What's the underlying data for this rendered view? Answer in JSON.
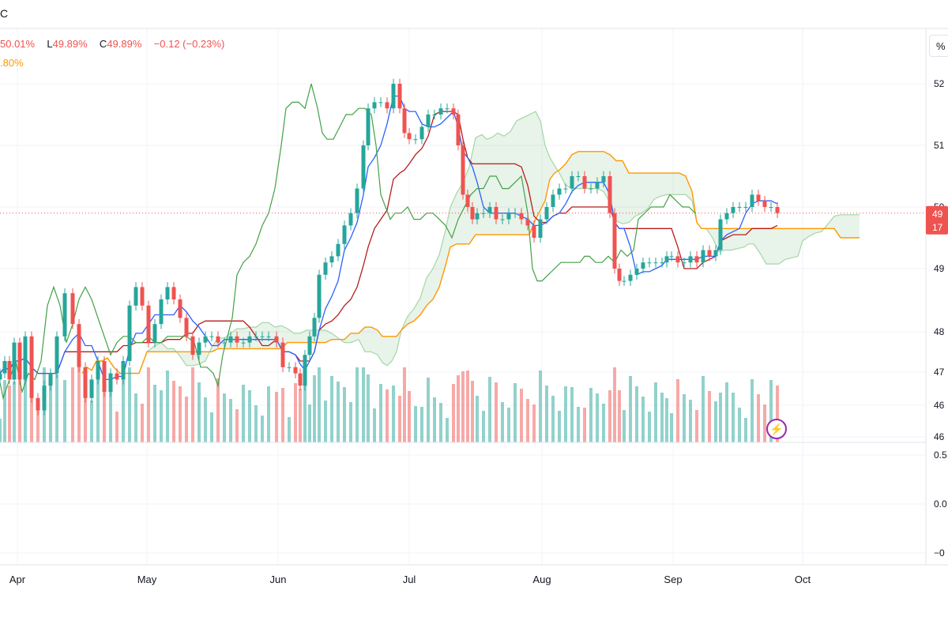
{
  "header": {
    "symbol_fragment": "C",
    "ohlc_parts": [
      {
        "label": "",
        "value": "50.01%"
      },
      {
        "label": "L",
        "value": "49.89%"
      },
      {
        "label": "C",
        "value": "49.89%"
      },
      {
        "label": "",
        "value": "−0.12 (−0.23%)"
      }
    ],
    "ichimoku_value": ".80%",
    "percent_button": "%"
  },
  "colors": {
    "up": "#26a69a",
    "down": "#ef5350",
    "tenkan": "#2962ff",
    "kijun": "#b71c1c",
    "chikou": "#43a047",
    "span_a": "#a5d6a7",
    "span_b": "#ff9800",
    "cloud_bull": "rgba(67,160,71,0.12)",
    "cloud_bear": "rgba(244,67,54,0.12)",
    "vol_up": "rgba(38,166,154,0.5)",
    "vol_down": "rgba(239,83,80,0.5)",
    "grid": "#f0f3fa",
    "axis_text": "#131722"
  },
  "chart_data": {
    "type": "candlestick",
    "x_axis_labels": [
      "Apr",
      "May",
      "Jun",
      "Jul",
      "Aug",
      "Sep",
      "Oct"
    ],
    "y_axis_labels": [
      "52",
      "51",
      "50",
      "49",
      "48",
      "47",
      "46",
      "46"
    ],
    "y_unit": "%",
    "y_range_approx": [
      45.5,
      52.1
    ],
    "last_price_label": "49",
    "countdown_label": "17",
    "oscillator_axis_labels": [
      "0.5",
      "0.0",
      "−0"
    ],
    "price_points": [
      [
        0,
        47.3
      ],
      [
        6,
        47.5
      ],
      [
        12,
        47.2
      ],
      [
        18,
        47.8
      ],
      [
        25,
        47.2
      ],
      [
        32,
        47.9
      ],
      [
        40,
        46.9
      ],
      [
        48,
        46.7
      ],
      [
        56,
        47.1
      ],
      [
        64,
        47.3
      ],
      [
        72,
        47.9
      ],
      [
        82,
        48.6
      ],
      [
        92,
        48.1
      ],
      [
        100,
        47.4
      ],
      [
        108,
        46.9
      ],
      [
        116,
        47.2
      ],
      [
        124,
        47.5
      ],
      [
        132,
        47.0
      ],
      [
        140,
        47.3
      ],
      [
        148,
        47.2
      ],
      [
        156,
        47.5
      ],
      [
        164,
        48.4
      ],
      [
        172,
        48.7
      ],
      [
        180,
        48.4
      ],
      [
        188,
        47.8
      ],
      [
        196,
        48.1
      ],
      [
        204,
        48.5
      ],
      [
        212,
        48.7
      ],
      [
        220,
        48.5
      ],
      [
        228,
        48.2
      ],
      [
        236,
        47.9
      ],
      [
        244,
        47.6
      ],
      [
        252,
        47.8
      ],
      [
        260,
        47.9
      ],
      [
        268,
        47.9
      ],
      [
        276,
        47.8
      ],
      [
        284,
        47.8
      ],
      [
        292,
        47.9
      ],
      [
        300,
        47.8
      ],
      [
        308,
        47.8
      ],
      [
        316,
        47.9
      ],
      [
        324,
        47.9
      ],
      [
        332,
        47.9
      ],
      [
        340,
        47.9
      ],
      [
        350,
        47.8
      ],
      [
        358,
        47.4
      ],
      [
        366,
        47.4
      ],
      [
        374,
        47.3
      ],
      [
        380,
        47.1
      ],
      [
        386,
        47.6
      ],
      [
        392,
        47.9
      ],
      [
        398,
        48.2
      ],
      [
        404,
        48.9
      ],
      [
        412,
        49.1
      ],
      [
        420,
        49.2
      ],
      [
        428,
        49.4
      ],
      [
        436,
        49.7
      ],
      [
        444,
        49.9
      ],
      [
        452,
        50.3
      ],
      [
        460,
        51.0
      ],
      [
        466,
        51.6
      ],
      [
        474,
        51.7
      ],
      [
        482,
        51.7
      ],
      [
        490,
        51.6
      ],
      [
        498,
        52.0
      ],
      [
        506,
        51.6
      ],
      [
        512,
        51.2
      ],
      [
        518,
        51.1
      ],
      [
        526,
        51.1
      ],
      [
        534,
        51.3
      ],
      [
        542,
        51.5
      ],
      [
        550,
        51.5
      ],
      [
        558,
        51.6
      ],
      [
        566,
        51.6
      ],
      [
        574,
        51.5
      ],
      [
        580,
        51.0
      ],
      [
        586,
        50.2
      ],
      [
        592,
        50.0
      ],
      [
        598,
        49.8
      ],
      [
        604,
        49.9
      ],
      [
        612,
        49.9
      ],
      [
        620,
        50.0
      ],
      [
        628,
        49.8
      ],
      [
        636,
        49.8
      ],
      [
        644,
        49.9
      ],
      [
        652,
        49.9
      ],
      [
        660,
        49.8
      ],
      [
        668,
        49.7
      ],
      [
        676,
        49.5
      ],
      [
        684,
        49.8
      ],
      [
        692,
        50.0
      ],
      [
        700,
        50.2
      ],
      [
        708,
        50.3
      ],
      [
        716,
        50.3
      ],
      [
        724,
        50.5
      ],
      [
        732,
        50.5
      ],
      [
        740,
        50.3
      ],
      [
        748,
        50.3
      ],
      [
        756,
        50.4
      ],
      [
        764,
        50.5
      ],
      [
        772,
        49.9
      ],
      [
        778,
        49.0
      ],
      [
        784,
        48.8
      ],
      [
        790,
        48.8
      ],
      [
        798,
        48.9
      ],
      [
        806,
        49.0
      ],
      [
        814,
        49.1
      ],
      [
        822,
        49.1
      ],
      [
        830,
        49.1
      ],
      [
        838,
        49.1
      ],
      [
        844,
        49.2
      ],
      [
        850,
        49.2
      ],
      [
        858,
        49.1
      ],
      [
        866,
        49.1
      ],
      [
        874,
        49.2
      ],
      [
        882,
        49.1
      ],
      [
        890,
        49.3
      ],
      [
        898,
        49.2
      ],
      [
        906,
        49.3
      ],
      [
        912,
        49.8
      ],
      [
        920,
        49.9
      ],
      [
        928,
        50.0
      ],
      [
        936,
        50.0
      ],
      [
        944,
        50.0
      ],
      [
        952,
        50.2
      ],
      [
        960,
        50.1
      ],
      [
        968,
        50.0
      ],
      [
        976,
        50.0
      ],
      [
        984,
        49.9
      ]
    ]
  }
}
